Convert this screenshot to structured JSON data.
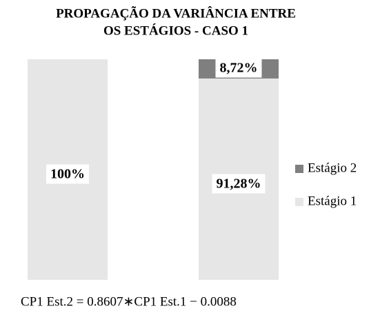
{
  "chart_data": {
    "type": "stacked_bar",
    "title": [
      "PROPAGAÇÃO DA VARIÂNCIA ENTRE",
      "OS ESTÁGIOS -  CASO 1"
    ],
    "categories": [
      null,
      null
    ],
    "series": [
      {
        "name": "Estágio 1",
        "color": "#e6e6e6",
        "values": [
          100,
          91.28
        ],
        "value_labels": [
          "100%",
          "91,28%"
        ]
      },
      {
        "name": "Estágio 2",
        "color": "#7f7f7f",
        "values": [
          0,
          8.72
        ],
        "value_labels": [
          null,
          "8,72%"
        ]
      }
    ],
    "annotation": "CP1 Est.2 = 0.8607∗CP1 Est.1  − 0.0088",
    "legend": "right"
  }
}
